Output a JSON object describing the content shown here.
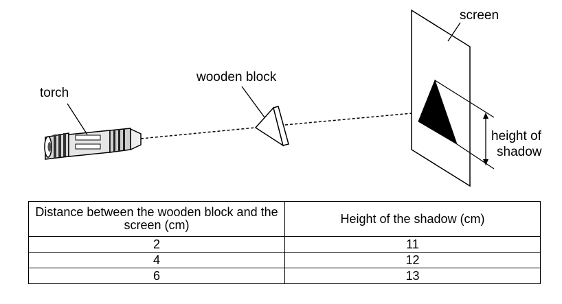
{
  "diagram": {
    "labels": {
      "torch": "torch",
      "wooden_block": "wooden block",
      "screen": "screen",
      "height_line1": "height of",
      "height_line2": "shadow"
    }
  },
  "table": {
    "headers": {
      "distance": "Distance between the wooden block and the screen (cm)",
      "height": "Height of the shadow (cm)"
    },
    "rows": [
      {
        "distance": "2",
        "height": "11"
      },
      {
        "distance": "4",
        "height": "12"
      },
      {
        "distance": "6",
        "height": "13"
      }
    ]
  }
}
